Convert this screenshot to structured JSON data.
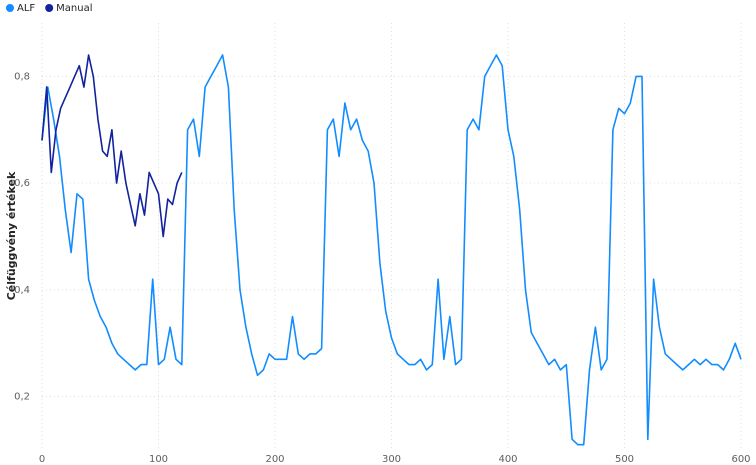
{
  "chart_data": {
    "type": "line",
    "y_label": "Célfüggvény értékek",
    "xlim": [
      0,
      600
    ],
    "xticks": [
      0,
      100,
      200,
      300,
      400,
      500,
      600
    ],
    "ylim": [
      0.1,
      0.9
    ],
    "yticks": [
      {
        "value": 0.2,
        "label": "0,2"
      },
      {
        "value": 0.4,
        "label": "0,4"
      },
      {
        "value": 0.6,
        "label": "0,6"
      },
      {
        "value": 0.8,
        "label": "0,8"
      }
    ],
    "grid": true,
    "legend": "top-left",
    "series": [
      {
        "name": "ALF",
        "color": "#118dff",
        "x": [
          0,
          5,
          10,
          15,
          20,
          25,
          30,
          35,
          40,
          45,
          50,
          55,
          60,
          65,
          70,
          75,
          80,
          85,
          90,
          95,
          100,
          105,
          110,
          115,
          120,
          125,
          130,
          135,
          140,
          145,
          150,
          155,
          160,
          165,
          170,
          175,
          180,
          185,
          190,
          195,
          200,
          205,
          210,
          215,
          220,
          225,
          230,
          235,
          240,
          245,
          250,
          255,
          260,
          265,
          270,
          275,
          280,
          285,
          290,
          295,
          300,
          305,
          310,
          315,
          320,
          325,
          330,
          335,
          340,
          345,
          350,
          355,
          360,
          365,
          370,
          375,
          380,
          385,
          390,
          395,
          400,
          405,
          410,
          415,
          420,
          425,
          430,
          435,
          440,
          445,
          450,
          455,
          460,
          465,
          470,
          475,
          480,
          485,
          490,
          495,
          500,
          505,
          510,
          515,
          520,
          525,
          530,
          535,
          540,
          545,
          550,
          555,
          560,
          565,
          570,
          575,
          580,
          585,
          590,
          595,
          600
        ],
        "values": [
          0.68,
          0.78,
          0.72,
          0.65,
          0.55,
          0.47,
          0.58,
          0.57,
          0.42,
          0.38,
          0.35,
          0.33,
          0.3,
          0.28,
          0.27,
          0.26,
          0.25,
          0.26,
          0.26,
          0.42,
          0.26,
          0.27,
          0.33,
          0.27,
          0.26,
          0.7,
          0.72,
          0.65,
          0.78,
          0.8,
          0.82,
          0.84,
          0.78,
          0.55,
          0.4,
          0.33,
          0.28,
          0.24,
          0.25,
          0.28,
          0.27,
          0.27,
          0.27,
          0.35,
          0.28,
          0.27,
          0.28,
          0.28,
          0.29,
          0.7,
          0.72,
          0.65,
          0.75,
          0.7,
          0.72,
          0.68,
          0.66,
          0.6,
          0.45,
          0.36,
          0.31,
          0.28,
          0.27,
          0.26,
          0.26,
          0.27,
          0.25,
          0.26,
          0.42,
          0.27,
          0.35,
          0.26,
          0.27,
          0.7,
          0.72,
          0.7,
          0.8,
          0.82,
          0.84,
          0.82,
          0.7,
          0.65,
          0.55,
          0.4,
          0.32,
          0.3,
          0.28,
          0.26,
          0.27,
          0.25,
          0.26,
          0.12,
          0.11,
          0.11,
          0.25,
          0.33,
          0.25,
          0.27,
          0.7,
          0.74,
          0.73,
          0.75,
          0.8,
          0.8,
          0.12,
          0.42,
          0.33,
          0.28,
          0.27,
          0.26,
          0.25,
          0.26,
          0.27,
          0.26,
          0.27,
          0.26,
          0.26,
          0.25,
          0.27,
          0.3,
          0.27
        ]
      },
      {
        "name": "Manual",
        "color": "#12239e",
        "x": [
          0,
          4,
          8,
          12,
          16,
          20,
          24,
          28,
          32,
          36,
          40,
          44,
          48,
          52,
          56,
          60,
          64,
          68,
          72,
          76,
          80,
          84,
          88,
          92,
          96,
          100,
          104,
          108,
          112,
          116,
          120
        ],
        "values": [
          0.68,
          0.78,
          0.62,
          0.7,
          0.74,
          0.76,
          0.78,
          0.8,
          0.82,
          0.78,
          0.84,
          0.8,
          0.72,
          0.66,
          0.65,
          0.7,
          0.6,
          0.66,
          0.6,
          0.56,
          0.52,
          0.58,
          0.54,
          0.62,
          0.6,
          0.58,
          0.5,
          0.57,
          0.56,
          0.6,
          0.62
        ]
      }
    ]
  }
}
